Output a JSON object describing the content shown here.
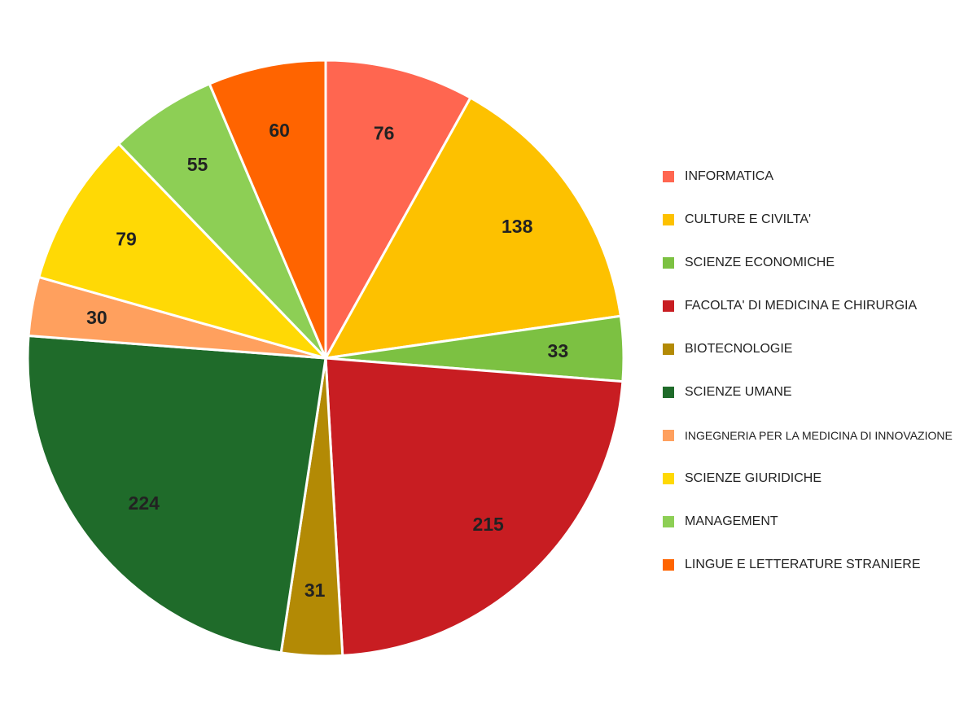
{
  "chart_data": {
    "type": "pie",
    "title": "",
    "legend_position": "right",
    "slices": [
      {
        "label": "INFORMATICA",
        "value": 76,
        "value_label": "76",
        "color": "#FF6650"
      },
      {
        "label": "CULTURE E CIVILTA'",
        "value": 138,
        "value_label": "138",
        "color": "#FDC100"
      },
      {
        "label": "SCIENZE ECONOMICHE",
        "value": 33,
        "value_label": "33",
        "color": "#7CC142"
      },
      {
        "label": "FACOLTA' DI MEDICINA E CHIRURGIA",
        "value": 215,
        "value_label": "215",
        "color": "#C81D22"
      },
      {
        "label": "BIOTECNOLOGIE",
        "value": 31,
        "value_label": "31",
        "color": "#B38A05"
      },
      {
        "label": "SCIENZE UMANE",
        "value": 224,
        "value_label": "224",
        "color": "#1F6B2A"
      },
      {
        "label": "INGEGNERIA PER LA MEDICINA DI INNOVAZIONE",
        "value": 30,
        "value_label": "30",
        "color": "#FFA05E"
      },
      {
        "label": "SCIENZE GIURIDICHE",
        "value": 79,
        "value_label": "79",
        "color": "#FFD905"
      },
      {
        "label": "MANAGEMENT",
        "value": 55,
        "value_label": "55",
        "color": "#8DCF55"
      },
      {
        "label": "LINGUE E LETTERATURE STRANIERE",
        "value": 60,
        "value_label": "60",
        "color": "#FF6400"
      }
    ]
  }
}
